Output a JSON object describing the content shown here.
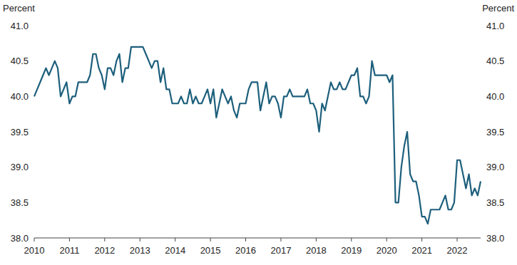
{
  "chart_data": {
    "type": "line",
    "y_label": "Percent",
    "color": "#1d5f7c",
    "grid": false,
    "categories": [
      "2010",
      null,
      null,
      null,
      null,
      null,
      null,
      null,
      null,
      null,
      null,
      null,
      "2011",
      null,
      null,
      null,
      null,
      null,
      null,
      null,
      null,
      null,
      null,
      null,
      "2012",
      null,
      null,
      null,
      null,
      null,
      null,
      null,
      null,
      null,
      null,
      null,
      "2013",
      null,
      null,
      null,
      null,
      null,
      null,
      null,
      null,
      null,
      null,
      null,
      "2014",
      null,
      null,
      null,
      null,
      null,
      null,
      null,
      null,
      null,
      null,
      null,
      "2015",
      null,
      null,
      null,
      null,
      null,
      null,
      null,
      null,
      null,
      null,
      null,
      "2016",
      null,
      null,
      null,
      null,
      null,
      null,
      null,
      null,
      null,
      null,
      null,
      "2017",
      null,
      null,
      null,
      null,
      null,
      null,
      null,
      null,
      null,
      null,
      null,
      "2018",
      null,
      null,
      null,
      null,
      null,
      null,
      null,
      null,
      null,
      null,
      null,
      "2019",
      null,
      null,
      null,
      null,
      null,
      null,
      null,
      null,
      null,
      null,
      null,
      "2020",
      null,
      null,
      null,
      null,
      null,
      null,
      null,
      null,
      null,
      null,
      null,
      "2021",
      null,
      null,
      null,
      null,
      null,
      null,
      null,
      null,
      null,
      null,
      null,
      "2022",
      null,
      null,
      null,
      null,
      null,
      null,
      null,
      null
    ],
    "values": [
      40.0,
      40.1,
      40.2,
      40.3,
      40.4,
      40.3,
      40.4,
      40.5,
      40.4,
      40.0,
      40.1,
      40.2,
      39.9,
      40.0,
      40.0,
      40.2,
      40.2,
      40.2,
      40.2,
      40.3,
      40.6,
      40.6,
      40.4,
      40.3,
      40.1,
      40.4,
      40.4,
      40.3,
      40.5,
      40.6,
      40.2,
      40.4,
      40.4,
      40.7,
      40.7,
      40.7,
      40.7,
      40.7,
      40.6,
      40.5,
      40.4,
      40.5,
      40.5,
      40.2,
      40.4,
      40.1,
      40.1,
      39.9,
      39.9,
      39.9,
      40.0,
      39.9,
      39.9,
      40.1,
      39.9,
      40.0,
      39.9,
      39.9,
      40.0,
      40.1,
      39.9,
      40.1,
      39.7,
      39.9,
      40.1,
      40.0,
      39.9,
      40.0,
      39.8,
      39.7,
      39.9,
      39.9,
      39.9,
      40.1,
      40.2,
      40.2,
      40.2,
      39.8,
      40.0,
      40.2,
      39.9,
      40.0,
      40.0,
      39.9,
      39.7,
      40.0,
      40.0,
      40.1,
      40.0,
      40.0,
      40.0,
      40.0,
      40.0,
      40.1,
      39.9,
      39.9,
      39.8,
      39.5,
      39.9,
      39.8,
      40.0,
      40.2,
      40.1,
      40.1,
      40.2,
      40.1,
      40.1,
      40.2,
      40.3,
      40.3,
      40.4,
      40.0,
      40.0,
      39.9,
      40.0,
      40.5,
      40.3,
      40.3,
      40.3,
      40.3,
      40.3,
      40.2,
      40.3,
      38.5,
      38.5,
      39.0,
      39.3,
      39.5,
      38.9,
      38.8,
      38.8,
      38.6,
      38.3,
      38.3,
      38.2,
      38.4,
      38.4,
      38.4,
      38.4,
      38.5,
      38.6,
      38.4,
      38.4,
      38.5,
      39.1,
      39.1,
      38.9,
      38.7,
      38.9,
      38.6,
      38.7,
      38.6,
      38.8
    ],
    "ylim": [
      38.0,
      41.0
    ],
    "yticks": [
      {
        "value": 38.0,
        "label": "38.0"
      },
      38.5,
      {
        "value": 39.0,
        "label": "39.0"
      },
      39.5,
      {
        "value": 40.0,
        "label": "40.0"
      },
      40.5,
      {
        "value": 41.0,
        "label": "41.0"
      }
    ]
  }
}
